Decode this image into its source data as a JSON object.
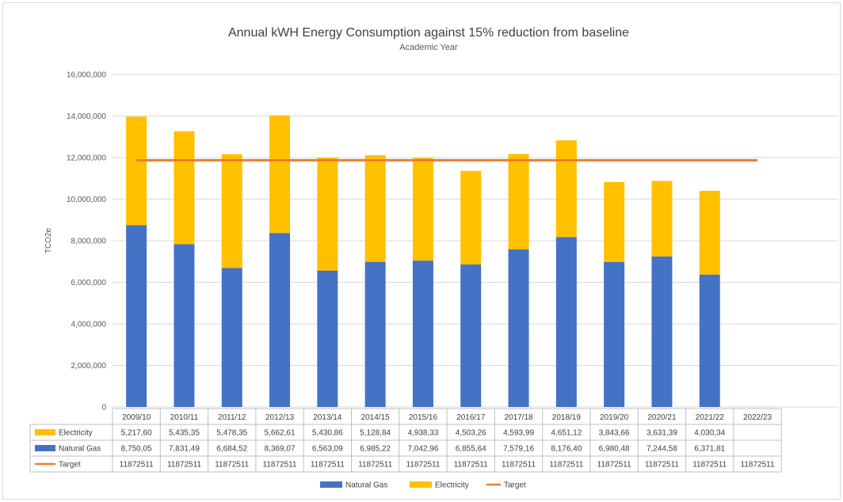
{
  "chart_data": {
    "type": "bar",
    "stacked": true,
    "title": "Annual kWH Energy Consumption  against 15% reduction from baseline",
    "subtitle": "Academic Year",
    "ylabel": "TCO2e",
    "ylim": [
      0,
      16000000
    ],
    "yticks": [
      "0",
      "2,000,000",
      "4,000,000",
      "6,000,000",
      "8,000,000",
      "10,000,000",
      "12,000,000",
      "14,000,000",
      "16,000,000"
    ],
    "grid": true,
    "legend_position": "bottom",
    "categories": [
      "2009/10",
      "2010/11",
      "2011/12",
      "2012/13",
      "2013/14",
      "2014/15",
      "2015/16",
      "2016/17",
      "2017/18",
      "2018/19",
      "2019/20",
      "2020/21",
      "2021/22",
      "2022/23"
    ],
    "series": [
      {
        "name": "Natural Gas",
        "color": "#4472c4",
        "kind": "bar",
        "values": [
          8750050,
          7831490,
          6684520,
          8369070,
          6563090,
          6985220,
          7042960,
          6855640,
          7579160,
          8176400,
          6980480,
          7244580,
          6371810,
          null
        ],
        "table_labels": [
          "8,750,05",
          "7,831,49",
          "6,684,52",
          "8,369,07",
          "6,563,09",
          "6,985,22",
          "7,042,96",
          "6,855,64",
          "7,579,16",
          "8,176,40",
          "6,980,48",
          "7,244,58",
          "6,371,81",
          ""
        ]
      },
      {
        "name": "Electricity",
        "color": "#ffc000",
        "kind": "bar",
        "values": [
          5217600,
          5435350,
          5478350,
          5662610,
          5430860,
          5128840,
          4938330,
          4503260,
          4593990,
          4651120,
          3843660,
          3631390,
          4030340,
          null
        ],
        "table_labels": [
          "5,217,60",
          "5,435,35",
          "5,478,35",
          "5,662,61",
          "5,430,86",
          "5,128,84",
          "4,938,33",
          "4,503,26",
          "4,593,99",
          "4,651,12",
          "3,843,66",
          "3,631,39",
          "4,030,34",
          ""
        ]
      },
      {
        "name": "Target",
        "color": "#ed7d31",
        "kind": "line",
        "values": [
          11872511,
          11872511,
          11872511,
          11872511,
          11872511,
          11872511,
          11872511,
          11872511,
          11872511,
          11872511,
          11872511,
          11872511,
          11872511,
          11872511
        ],
        "table_labels": [
          "11872511",
          "11872511",
          "11872511",
          "11872511",
          "11872511",
          "11872511",
          "11872511",
          "11872511",
          "11872511",
          "11872511",
          "11872511",
          "11872511",
          "11872511",
          "11872511"
        ]
      }
    ],
    "table_row_order": [
      "Electricity",
      "Natural Gas",
      "Target"
    ],
    "legend_order": [
      "Natural Gas",
      "Electricity",
      "Target"
    ]
  }
}
